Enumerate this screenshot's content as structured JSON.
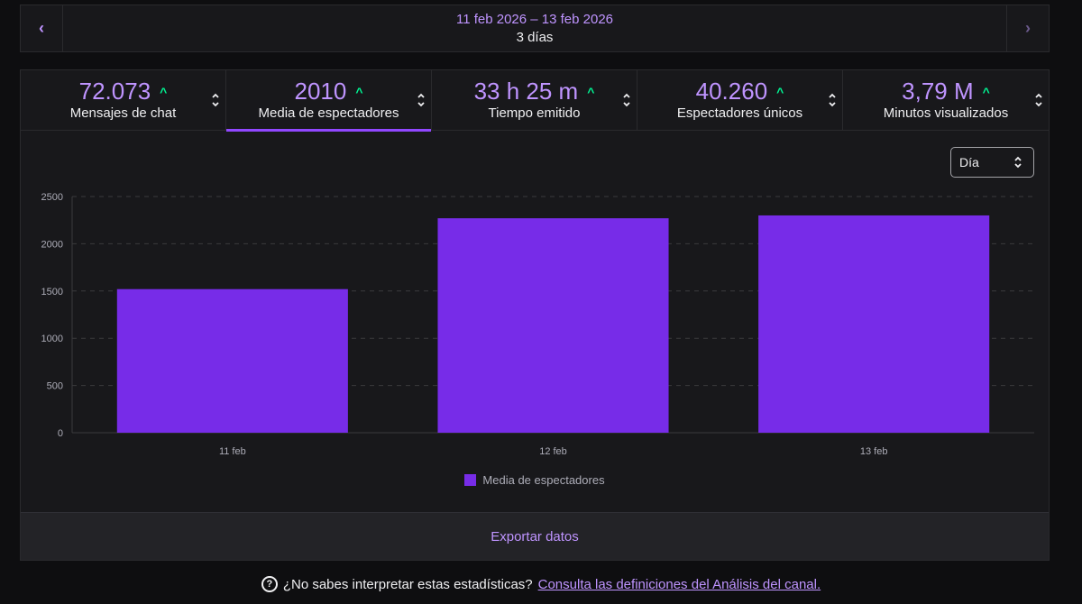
{
  "date_nav": {
    "prev_icon": "chevron-left-icon",
    "next_icon": "chevron-right-icon",
    "range": "11 feb 2026 – 13 feb 2026",
    "days": "3 días"
  },
  "metrics": [
    {
      "value": "72.073",
      "label": "Mensajes de chat",
      "trend": "up"
    },
    {
      "value": "2010",
      "label": "Media de espectadores",
      "trend": "up"
    },
    {
      "value": "33 h 25 m",
      "label": "Tiempo emitido",
      "trend": "up"
    },
    {
      "value": "40.260",
      "label": "Espectadores únicos",
      "trend": "up"
    },
    {
      "value": "3,79 M",
      "label": "Minutos visualizados",
      "trend": "up"
    }
  ],
  "active_metric": 1,
  "period_select": {
    "value": "Día"
  },
  "colors": {
    "accent": "#bf94ff",
    "bar": "#772ce8",
    "trend_up": "#00f593"
  },
  "chart_data": {
    "type": "bar",
    "categories": [
      "11 feb",
      "12 feb",
      "13 feb"
    ],
    "series": [
      {
        "name": "Media de espectadores",
        "values": [
          1520,
          2270,
          2300
        ]
      }
    ],
    "ylim": [
      0,
      2500
    ],
    "yticks": [
      0,
      500,
      1000,
      1500,
      2000,
      2500
    ],
    "grid": true,
    "legend": "bottom-center"
  },
  "export_label": "Exportar datos",
  "help": {
    "question": "¿No sabes interpretar estas estadísticas?",
    "link": "Consulta las definiciones del Análisis del canal."
  }
}
